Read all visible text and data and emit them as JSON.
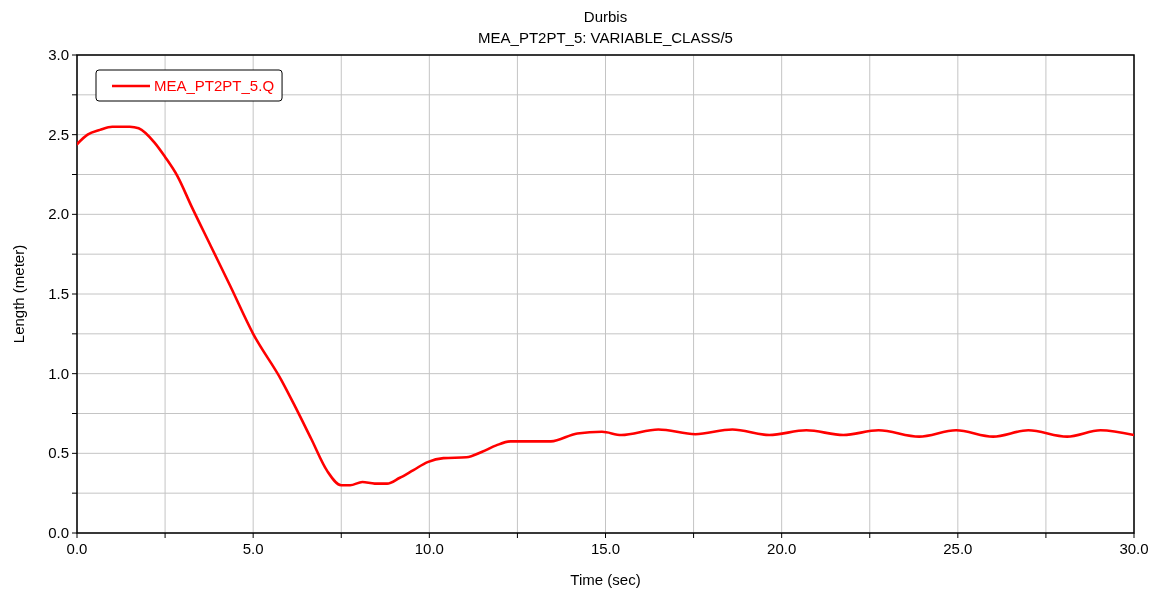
{
  "chart_data": {
    "type": "line",
    "title": "Durbis",
    "subtitle": "MEA_PT2PT_5: VARIABLE_CLASS/5",
    "xlabel": "Time (sec)",
    "ylabel": "Length (meter)",
    "x": [
      0,
      0.3,
      0.65,
      1.0,
      1.5,
      1.75,
      2.2,
      2.5,
      2.85,
      3.25,
      3.8,
      4.35,
      5.0,
      5.8,
      6.2,
      6.65,
      7.1,
      7.5,
      7.75,
      8.1,
      8.45,
      8.8,
      9.15,
      9.55,
      9.95,
      10.4,
      11.05,
      11.5,
      11.9,
      12.3,
      13.45,
      14.2,
      14.9,
      15.45,
      16.5,
      17.55,
      18.6,
      19.65,
      20.7,
      21.75,
      22.75,
      23.9,
      24.95,
      26.0,
      27.0,
      28.1,
      29.05,
      30.0
    ],
    "series": [
      {
        "name": "MEA_PT2PT_5.Q",
        "color": "#ff0000",
        "values": [
          2.44,
          2.5,
          2.53,
          2.55,
          2.55,
          2.54,
          2.45,
          2.36,
          2.24,
          2.05,
          1.8,
          1.55,
          1.25,
          0.96,
          0.79,
          0.59,
          0.39,
          0.3,
          0.3,
          0.32,
          0.31,
          0.31,
          0.345,
          0.395,
          0.445,
          0.47,
          0.475,
          0.51,
          0.55,
          0.575,
          0.575,
          0.625,
          0.635,
          0.615,
          0.65,
          0.62,
          0.65,
          0.615,
          0.645,
          0.615,
          0.645,
          0.605,
          0.645,
          0.605,
          0.645,
          0.605,
          0.645,
          0.615
        ]
      }
    ],
    "xlim": [
      0,
      30
    ],
    "ylim": [
      0,
      3
    ],
    "xticks": [
      {
        "value": 0,
        "label": "0.0"
      },
      {
        "value": 2.5,
        "label": null
      },
      {
        "value": 5,
        "label": "5.0"
      },
      {
        "value": 7.5,
        "label": null
      },
      {
        "value": 10,
        "label": "10.0"
      },
      {
        "value": 12.5,
        "label": null
      },
      {
        "value": 15,
        "label": "15.0"
      },
      {
        "value": 17.5,
        "label": null
      },
      {
        "value": 20,
        "label": "20.0"
      },
      {
        "value": 22.5,
        "label": null
      },
      {
        "value": 25,
        "label": "25.0"
      },
      {
        "value": 27.5,
        "label": null
      },
      {
        "value": 30,
        "label": "30.0"
      }
    ],
    "yticks": [
      {
        "value": 0,
        "label": "0.0"
      },
      {
        "value": 0.25,
        "label": null
      },
      0.5,
      {
        "value": 0.75,
        "label": null
      },
      {
        "value": 1,
        "label": "1.0"
      },
      {
        "value": 1.25,
        "label": null
      },
      1.5,
      {
        "value": 1.75,
        "label": null
      },
      {
        "value": 2,
        "label": "2.0"
      },
      {
        "value": 2.25,
        "label": null
      },
      2.5,
      {
        "value": 2.75,
        "label": null
      },
      {
        "value": 3,
        "label": "3.0"
      }
    ],
    "grid": true,
    "legend": "top left",
    "line_style": "solid"
  }
}
